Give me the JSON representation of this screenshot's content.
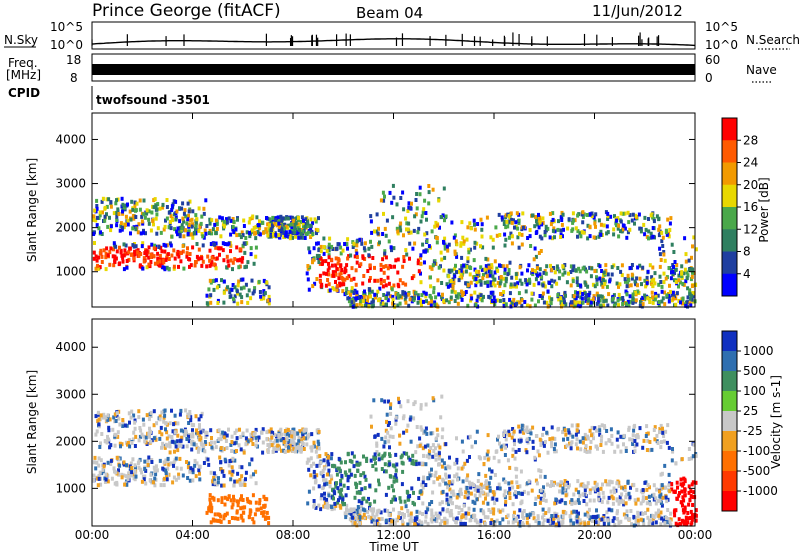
{
  "header": {
    "station": "Prince George (fitACF)",
    "beam": "Beam 04",
    "date": "11/Jun/2012"
  },
  "strips": {
    "nsky_label": "N.Sky",
    "nsearch_label": "N.Search",
    "nsky_ticks": [
      "10^5",
      "10^0"
    ],
    "nsearch_ticks": [
      "10^5",
      "10^0"
    ],
    "freq_label_1": "Freq.",
    "freq_label_2": "[MHz]",
    "freq_ticks": [
      "18",
      "8"
    ],
    "nave_label": "Nave",
    "nave_ticks": [
      "60",
      "0"
    ],
    "cpid_label": "CPID",
    "cpid_value": "twofsound -3501"
  },
  "chart_data": [
    {
      "type": "heatmap",
      "panel": "power",
      "ylabel": "Slant Range [km]",
      "ylim": [
        200,
        4600
      ],
      "yticks": [
        "4000",
        "3000",
        "2000",
        "1000"
      ],
      "xlim": [
        "00:00",
        "24:00"
      ],
      "colorbar_label": "Power [dB]",
      "colorbar_ticks": [
        "28",
        "24",
        "20",
        "16",
        "12",
        "8",
        "4"
      ],
      "colorbar_colors": [
        "#ff0000",
        "#ff5a00",
        "#f29a00",
        "#e8d800",
        "#4aa84a",
        "#2f7f60",
        "#1f3fa0",
        "#0000ff"
      ]
    },
    {
      "type": "heatmap",
      "panel": "velocity",
      "ylabel": "Slant Range [km]",
      "ylim": [
        200,
        4600
      ],
      "yticks": [
        "4000",
        "3000",
        "2000",
        "1000"
      ],
      "xlim": [
        "00:00",
        "24:00"
      ],
      "colorbar_label": "Velocity [m s-1]",
      "colorbar_ticks": [
        "1000",
        "500",
        "100",
        "25",
        "-25",
        "-100",
        "-500",
        "-1000"
      ],
      "colorbar_colors": [
        "#1030c0",
        "#2f6fb0",
        "#3f8f5f",
        "#66cc33",
        "#c8c8c8",
        "#f0a020",
        "#ff7000",
        "#ff3a00",
        "#ff0000"
      ]
    }
  ],
  "xaxis": {
    "ticks": [
      "00:00",
      "04:00",
      "08:00",
      "12:00",
      "16:00",
      "20:00",
      "00:00"
    ],
    "label": "Time UT"
  }
}
